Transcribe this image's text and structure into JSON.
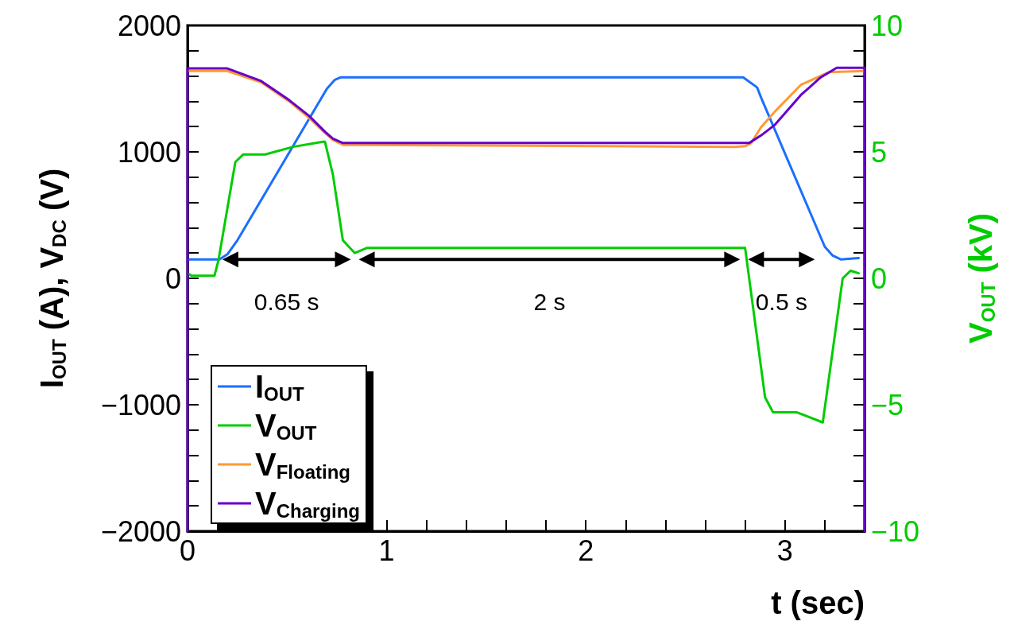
{
  "chart_data": {
    "type": "line",
    "xlabel": "t (sec)",
    "ylabel": "I$_{OUT}$ (A), V$_{DC}$ (V)",
    "y2label": "V$_{OUT}$ (kV)",
    "xlim": [
      0,
      3.4
    ],
    "xticks": [
      0,
      1,
      2,
      3
    ],
    "ylim": [
      -2000,
      2000
    ],
    "yticks": [
      -2000,
      -1000,
      0,
      1000,
      2000
    ],
    "y2lim": [
      -10,
      10
    ],
    "y2ticks": [
      -10,
      -5,
      0,
      5,
      10
    ],
    "grid": false,
    "legend": "bottom left",
    "marker": "none",
    "line_style": "solid",
    "series": [
      {
        "name": "I$_{OUT}$",
        "color": "#1a6fff",
        "x": [
          0,
          0.16,
          0.2,
          0.25,
          0.7,
          0.74,
          0.77,
          2.79,
          2.86,
          2.88,
          3.2,
          3.24,
          3.28,
          3.37
        ],
        "values": [
          150,
          150,
          190,
          300,
          1500,
          1570,
          1590,
          1590,
          1510,
          1430,
          250,
          180,
          150,
          160
        ]
      },
      {
        "name": "V$_{OUT}$",
        "color": "#00cc00",
        "axis": "y2",
        "x": [
          0,
          0.02,
          0.135,
          0.155,
          0.24,
          0.28,
          0.33,
          0.39,
          0.53,
          0.68,
          0.69,
          0.73,
          0.78,
          0.84,
          0.9,
          2.8,
          2.9,
          2.94,
          3.06,
          3.19,
          3.29,
          3.33,
          3.37
        ],
        "values": [
          0.2,
          0.1,
          0.1,
          0.7,
          4.6,
          4.9,
          4.9,
          4.9,
          5.2,
          5.4,
          5.4,
          4.1,
          1.5,
          1.0,
          1.2,
          1.2,
          -4.7,
          -5.3,
          -5.3,
          -5.7,
          0.0,
          0.3,
          0.2
        ]
      },
      {
        "name": "V$_{Floating}$",
        "color": "#ff9933",
        "x": [
          0,
          0.2,
          0.37,
          0.51,
          0.61,
          0.69,
          0.73,
          0.78,
          1.5,
          2.75,
          2.8,
          2.83,
          2.88,
          2.95,
          3.08,
          3.22,
          3.4
        ],
        "values": [
          1640,
          1640,
          1550,
          1400,
          1270,
          1150,
          1095,
          1055,
          1050,
          1040,
          1045,
          1070,
          1195,
          1320,
          1530,
          1630,
          1640
        ]
      },
      {
        "name": "V$_{Charging}$",
        "color": "#6600cc",
        "x": [
          0,
          0,
          0.2,
          0.37,
          0.51,
          0.61,
          0.69,
          0.73,
          0.78,
          2.82,
          2.88,
          2.95,
          3.08,
          3.18,
          3.26,
          3.4,
          3.4
        ],
        "values": [
          -2000,
          1660,
          1660,
          1560,
          1410,
          1285,
          1160,
          1105,
          1070,
          1070,
          1130,
          1215,
          1450,
          1590,
          1665,
          1665,
          -2000
        ]
      }
    ],
    "annotations": [
      "0.65 s",
      "2 s",
      "0.5 s"
    ]
  }
}
